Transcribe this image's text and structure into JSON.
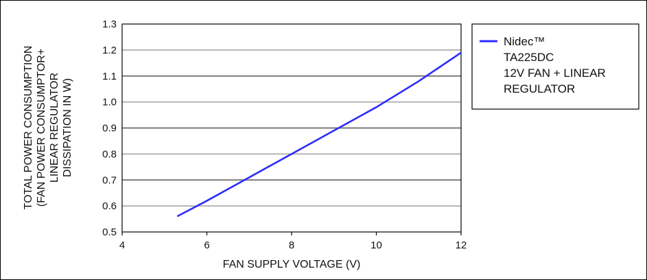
{
  "chart_data": {
    "type": "line",
    "xlabel": "FAN SUPPLY VOLTAGE (V)",
    "ylabel_lines": [
      "TOTAL POWER CONSUMPTION",
      "(FAN POWER CONSUMPTOR+",
      "LINEAR REGULATOR",
      "DISSIPATION IN W)"
    ],
    "xlim": [
      4,
      12
    ],
    "ylim": [
      0.5,
      1.3
    ],
    "x_ticks": [
      "4",
      "6",
      "8",
      "10",
      "12"
    ],
    "y_ticks": [
      "0.5",
      "0.6",
      "0.7",
      "0.8",
      "0.9",
      "1.0",
      "1.1",
      "1.2",
      "1.3"
    ],
    "grid": "horizontal",
    "legend_position": "right",
    "series": [
      {
        "name_lines": [
          "Nidec™",
          "TA225DC",
          "12V FAN + LINEAR",
          "REGULATOR"
        ],
        "color": "#2b2bff",
        "x": [
          5.3,
          6,
          7,
          8,
          9,
          10,
          11,
          12
        ],
        "y": [
          0.56,
          0.62,
          0.71,
          0.8,
          0.89,
          0.98,
          1.08,
          1.19
        ]
      }
    ]
  }
}
